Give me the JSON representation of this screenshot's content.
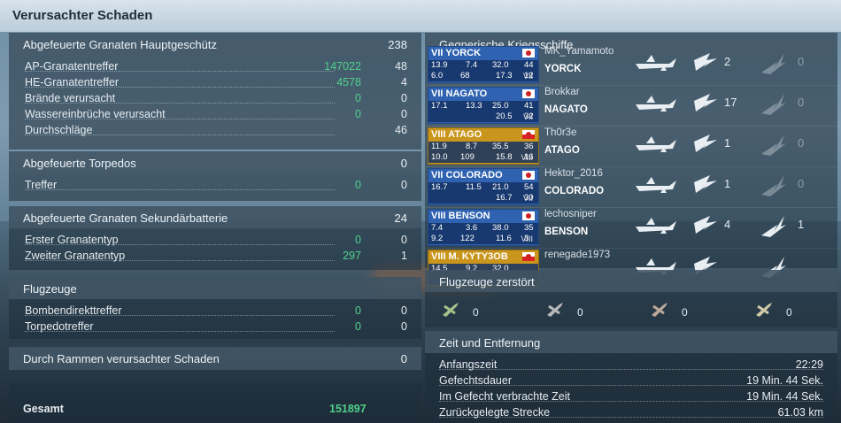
{
  "title": "Verursachter Schaden",
  "main_battery": {
    "header": "Abgefeuerte Granaten Hauptgeschütz",
    "header_value": "238",
    "rows": [
      {
        "label": "AP-Granatentreffer",
        "damage": "147022",
        "count": "48"
      },
      {
        "label": "HE-Granatentreffer",
        "damage": "4578",
        "count": "4"
      },
      {
        "label": "Brände verursacht",
        "damage": "0",
        "count": "0"
      },
      {
        "label": "Wassereinbrüche verursacht",
        "damage": "0",
        "count": "0"
      },
      {
        "label": "Durchschläge",
        "damage": "",
        "count": "46"
      }
    ]
  },
  "torpedoes": {
    "header": "Abgefeuerte Torpedos",
    "header_value": "0",
    "rows": [
      {
        "label": "Treffer",
        "damage": "0",
        "count": "0"
      }
    ]
  },
  "secondary": {
    "header": "Abgefeuerte Granaten Sekundärbatterie",
    "header_value": "24",
    "rows": [
      {
        "label": "Erster Granatentyp",
        "damage": "0",
        "count": "0"
      },
      {
        "label": "Zweiter Granatentyp",
        "damage": "297",
        "count": "1"
      }
    ]
  },
  "aircraft": {
    "header": "Flugzeuge",
    "rows": [
      {
        "label": "Bombendirekttreffer",
        "damage": "0",
        "count": "0"
      },
      {
        "label": "Torpedotreffer",
        "damage": "0",
        "count": "0"
      }
    ]
  },
  "ramming": {
    "label": "Durch Rammen verursachter Schaden",
    "value": "0"
  },
  "total": {
    "label": "Gesamt",
    "value": "151897"
  },
  "enemy_ships": {
    "header": "Gegnerische Kriegsschiffe",
    "ships": [
      {
        "card_name": "VII YORCK",
        "s1": "13.9",
        "s2": "7.4",
        "s3": "32.0",
        "s4": "44",
        "s5": "6.0",
        "s6": "68",
        "s7": "17.3",
        "s8": "12",
        "tier": "VII",
        "player": "MK_Yamamoto",
        "ship": "YORCK",
        "kills": "2",
        "other": "0",
        "gold": false
      },
      {
        "card_name": "VII NAGATO",
        "s1": "17.1",
        "s2": "13.3",
        "s3": "25.0",
        "s4": "41",
        "s5": "",
        "s6": "",
        "s7": "20.5",
        "s8": "32",
        "tier": "VII",
        "player": "Brokkar",
        "ship": "NAGATO",
        "kills": "17",
        "other": "0",
        "gold": false
      },
      {
        "card_name": "VIII ATAGO",
        "s1": "11.9",
        "s2": "8.7",
        "s3": "35.5",
        "s4": "36",
        "s5": "10.0",
        "s6": "109",
        "s7": "15.8",
        "s8": "16",
        "tier": "VIII",
        "player": "Th0r3e",
        "ship": "ATAGO",
        "kills": "1",
        "other": "0",
        "gold": true
      },
      {
        "card_name": "VII COLORADO",
        "s1": "16.7",
        "s2": "11.5",
        "s3": "21.0",
        "s4": "54",
        "s5": "",
        "s6": "",
        "s7": "16.7",
        "s8": "30",
        "tier": "VII",
        "player": "Hektor_2016",
        "ship": "COLORADO",
        "kills": "1",
        "other": "0",
        "gold": false
      },
      {
        "card_name": "VIII BENSON",
        "s1": "7.4",
        "s2": "3.6",
        "s3": "38.0",
        "s4": "35",
        "s5": "9.2",
        "s6": "122",
        "s7": "11.6",
        "s8": "3",
        "tier": "VIII",
        "player": "lechosniper",
        "ship": "BENSON",
        "kills": "4",
        "other": "1",
        "gold": false
      },
      {
        "card_name": "VIII M. KYTY3OB",
        "s1": "14.5",
        "s2": "9.2",
        "s3": "32.0",
        "s4": "",
        "s5": "",
        "s6": "",
        "s7": "",
        "s8": "",
        "tier": "",
        "player": "renegade1973",
        "ship": "",
        "kills": "",
        "other": "",
        "gold": true
      }
    ]
  },
  "planes_destroyed": {
    "header": "Flugzeuge zerstört",
    "items": [
      {
        "icon": "fighter-icon",
        "value": "0"
      },
      {
        "icon": "torpedo-bomber-icon",
        "value": "0"
      },
      {
        "icon": "dive-bomber-icon",
        "value": "0"
      },
      {
        "icon": "bomber-icon",
        "value": "0"
      }
    ]
  },
  "time_distance": {
    "header": "Zeit und Entfernung",
    "rows": [
      {
        "label": "Anfangszeit",
        "value": "22:29"
      },
      {
        "label": "Gefechtsdauer",
        "value": "19 Min. 44 Sek."
      },
      {
        "label": "Im Gefecht verbrachte Zeit",
        "value": "19 Min. 44 Sek."
      },
      {
        "label": "Zurückgelegte Strecke",
        "value": "61.03 km"
      }
    ]
  },
  "colors": {
    "accent_green": "#4fd18a",
    "card_blue": "#2f62b0",
    "card_gold": "#c9951c"
  }
}
